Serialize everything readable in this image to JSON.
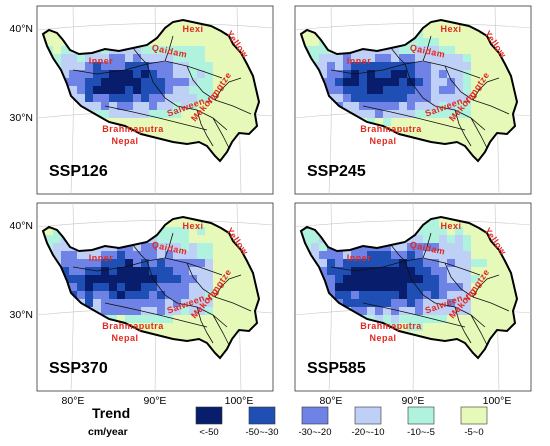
{
  "panels": [
    {
      "scenario": "SSP126",
      "intensity": 0.85
    },
    {
      "scenario": "SSP245",
      "intensity": 0.95
    },
    {
      "scenario": "SSP370",
      "intensity": 1.1
    },
    {
      "scenario": "SSP585",
      "intensity": 1.2
    }
  ],
  "lat_ticks": [
    "40°N",
    "30°N"
  ],
  "lon_ticks": [
    "80°E",
    "90°E",
    "100°E"
  ],
  "basins": [
    {
      "name": "Hexi",
      "kind": "north"
    },
    {
      "name": "Yellow",
      "kind": "east"
    },
    {
      "name": "Qaidam",
      "kind": "north-central"
    },
    {
      "name": "Yangtze",
      "kind": "east-central"
    },
    {
      "name": "Mekong",
      "kind": "south-east"
    },
    {
      "name": "Salween",
      "kind": "south-east"
    },
    {
      "name": "Brahmaputra",
      "kind": "south"
    },
    {
      "name": "Nepal",
      "kind": "south"
    },
    {
      "name": "Inner",
      "kind": "central"
    }
  ],
  "legend": {
    "title": "Trend",
    "unit": "cm/year",
    "classes": [
      {
        "label": "<-50",
        "color": "#081d6b"
      },
      {
        "label": "-50~-30",
        "color": "#1f4fb5"
      },
      {
        "label": "-30~-20",
        "color": "#6f83e6"
      },
      {
        "label": "-20~-10",
        "color": "#bfd0f6"
      },
      {
        "label": "-10~-5",
        "color": "#aff3df"
      },
      {
        "label": "-5~0",
        "color": "#e6f9b8"
      }
    ]
  }
}
